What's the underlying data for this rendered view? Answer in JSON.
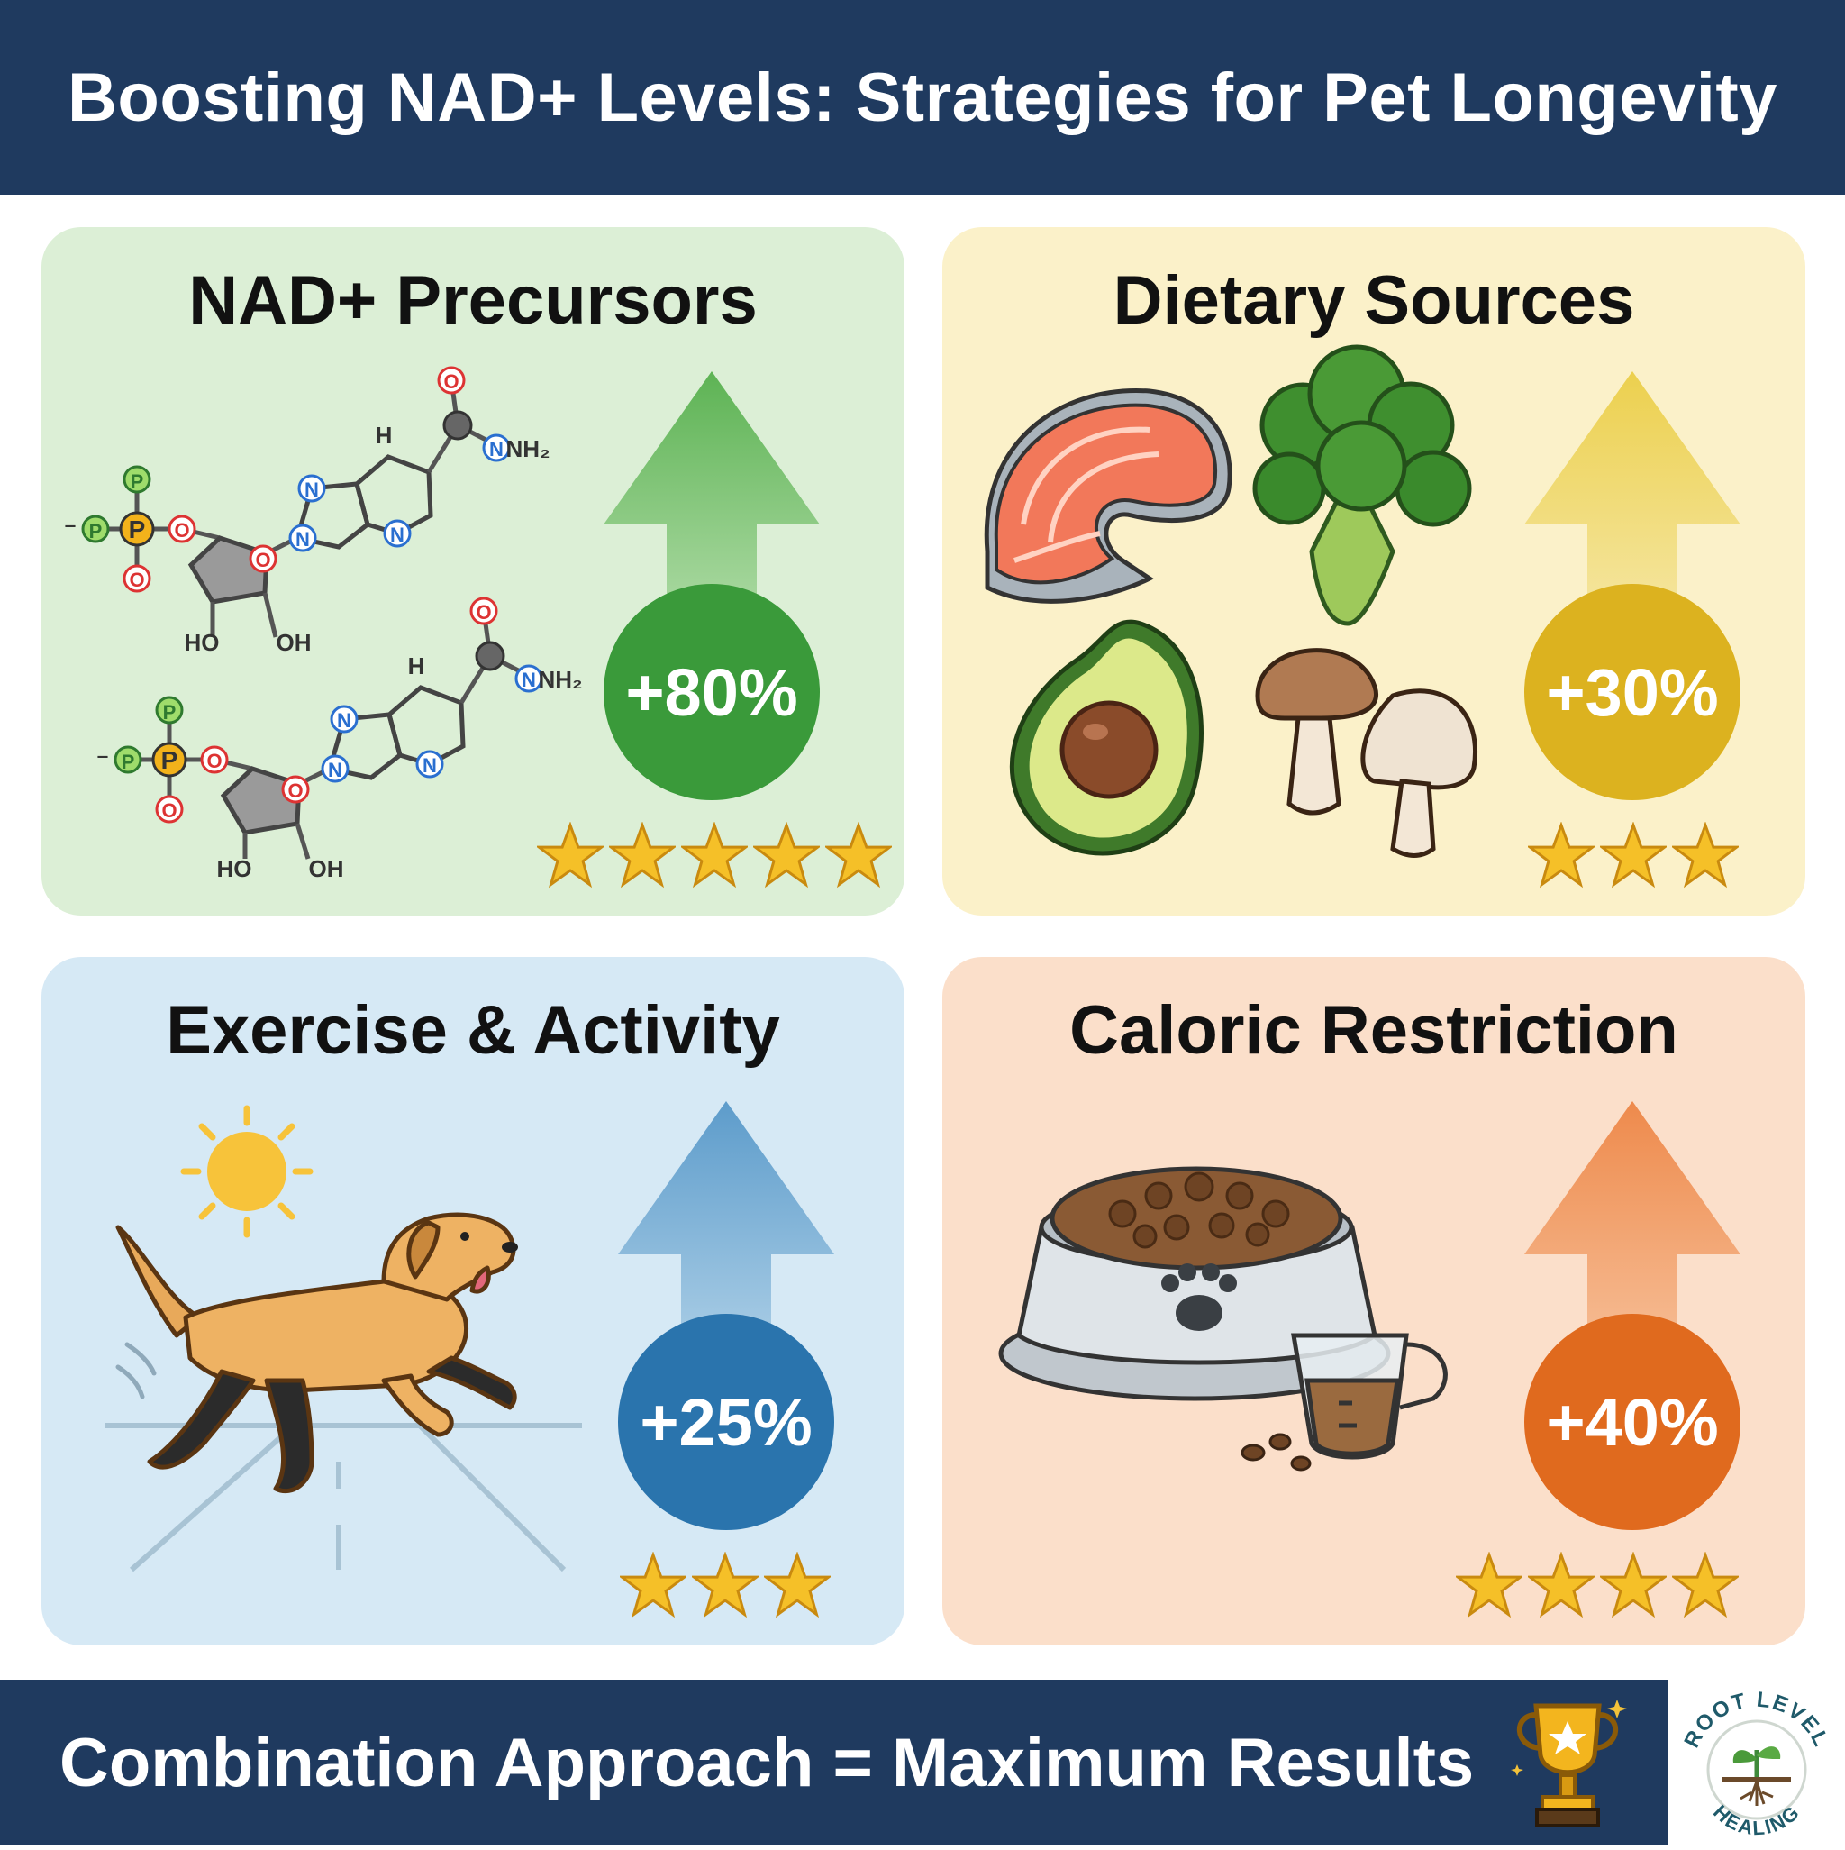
{
  "header": {
    "title": "Boosting NAD+ Levels: Strategies for Pet Longevity"
  },
  "cards": [
    {
      "title": "NAD+ Precursors",
      "percent": "+80%",
      "stars": 5,
      "color": "#3a9a3a",
      "arrow_color": "#6ebf62",
      "bg": "#dcefd6"
    },
    {
      "title": "Dietary Sources",
      "percent": "+30%",
      "stars": 3,
      "color": "#dcb21f",
      "arrow_color": "#ecd25a",
      "bg": "#fbf1c9"
    },
    {
      "title": "Exercise & Activity",
      "percent": "+25%",
      "stars": 3,
      "color": "#2a74ad",
      "arrow_color": "#6ba6d2",
      "bg": "#d6e9f5"
    },
    {
      "title": "Caloric Restriction",
      "percent": "+40%",
      "stars": 4,
      "color": "#e06a1e",
      "arrow_color": "#ef955b",
      "bg": "#fbdfca"
    }
  ],
  "molecule_labels": {
    "p": "P",
    "o": "O",
    "n": "N",
    "h": "H",
    "ho": "HO",
    "oh": "OH",
    "nh2": "NH₂",
    "neg": "⁻"
  },
  "footer": {
    "text": "Combination Approach = Maximum Results"
  },
  "logo": {
    "top_text": "ROOT LEVEL",
    "bottom_text": "HEALING"
  },
  "icons": {
    "molecules": "molecule-icon",
    "salmon": "salmon-icon",
    "broccoli": "broccoli-icon",
    "avocado": "avocado-icon",
    "mushrooms": "mushroom-icon",
    "dog": "dog-icon",
    "sun": "sun-icon",
    "bowl": "food-bowl-icon",
    "cup": "measuring-cup-icon",
    "trophy": "trophy-icon",
    "star": "star-icon"
  }
}
